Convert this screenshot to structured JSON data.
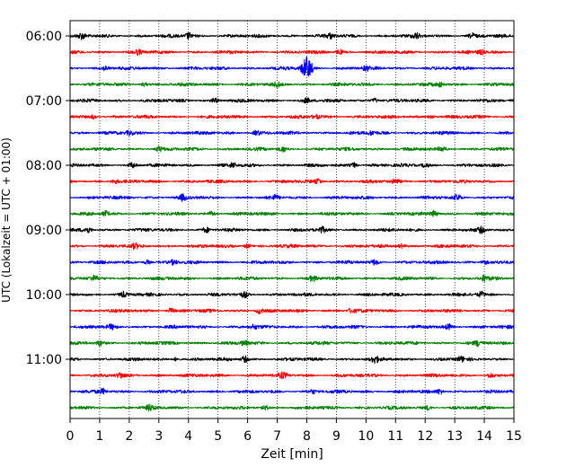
{
  "chart_data": {
    "type": "line",
    "title": "",
    "xlabel": "Zeit  [min]",
    "ylabel": "UTC (Lokalzeit = UTC + 01:00)",
    "xlim": [
      0,
      15
    ],
    "x_ticks": [
      "0",
      "1",
      "2",
      "3",
      "4",
      "5",
      "6",
      "7",
      "8",
      "9",
      "10",
      "11",
      "12",
      "13",
      "14",
      "15"
    ],
    "y_ticks": [
      {
        "label": "06:00",
        "row": 0
      },
      {
        "label": "07:00",
        "row": 4
      },
      {
        "label": "08:00",
        "row": 8
      },
      {
        "label": "09:00",
        "row": 12
      },
      {
        "label": "10:00",
        "row": 16
      },
      {
        "label": "11:00",
        "row": 20
      }
    ],
    "row_minutes": 15,
    "grid_x": true,
    "color_cycle": [
      "#000000",
      "#ff0000",
      "#0000ff",
      "#008000"
    ],
    "rows": [
      {
        "bursts": [
          {
            "t": 0.4,
            "a": 0.7
          },
          {
            "t": 4.0,
            "a": 0.8
          },
          {
            "t": 8.8,
            "a": 0.6
          },
          {
            "t": 11.7,
            "a": 0.6
          },
          {
            "t": 13.6,
            "a": 0.6
          }
        ]
      },
      {
        "bursts": [
          {
            "t": 2.3,
            "a": 0.5
          },
          {
            "t": 9.1,
            "a": 0.6
          },
          {
            "t": 13.9,
            "a": 0.5
          }
        ]
      },
      {
        "bursts": [
          {
            "t": 1.2,
            "a": 0.5
          },
          {
            "t": 8.0,
            "a": 3.0
          },
          {
            "t": 10.0,
            "a": 0.5
          }
        ]
      },
      {
        "bursts": [
          {
            "t": 2.5,
            "a": 0.5
          },
          {
            "t": 7.0,
            "a": 0.5
          },
          {
            "t": 12.5,
            "a": 0.5
          }
        ]
      },
      {
        "bursts": [
          {
            "t": 4.9,
            "a": 0.6
          },
          {
            "t": 8.0,
            "a": 0.5
          },
          {
            "t": 10.3,
            "a": 0.6
          }
        ]
      },
      {
        "bursts": [
          {
            "t": 0.8,
            "a": 0.5
          },
          {
            "t": 8.3,
            "a": 0.5
          },
          {
            "t": 12.2,
            "a": 0.5
          }
        ]
      },
      {
        "bursts": [
          {
            "t": 2.0,
            "a": 0.5
          },
          {
            "t": 6.3,
            "a": 0.6
          },
          {
            "t": 10.2,
            "a": 0.5
          }
        ]
      },
      {
        "bursts": [
          {
            "t": 3.0,
            "a": 0.6
          },
          {
            "t": 7.2,
            "a": 0.6
          },
          {
            "t": 12.6,
            "a": 0.5
          }
        ]
      },
      {
        "bursts": [
          {
            "t": 2.1,
            "a": 0.6
          },
          {
            "t": 5.5,
            "a": 0.6
          },
          {
            "t": 9.6,
            "a": 0.7
          },
          {
            "t": 12.0,
            "a": 0.6
          }
        ]
      },
      {
        "bursts": [
          {
            "t": 1.5,
            "a": 0.5
          },
          {
            "t": 8.4,
            "a": 0.6
          },
          {
            "t": 11.0,
            "a": 0.5
          }
        ]
      },
      {
        "bursts": [
          {
            "t": 3.8,
            "a": 0.7
          },
          {
            "t": 6.9,
            "a": 0.5
          },
          {
            "t": 13.1,
            "a": 0.7
          }
        ]
      },
      {
        "bursts": [
          {
            "t": 1.2,
            "a": 0.6
          },
          {
            "t": 4.8,
            "a": 0.6
          },
          {
            "t": 12.3,
            "a": 0.8
          }
        ]
      },
      {
        "bursts": [
          {
            "t": 0.6,
            "a": 0.7
          },
          {
            "t": 4.6,
            "a": 0.6
          },
          {
            "t": 8.5,
            "a": 0.6
          },
          {
            "t": 13.9,
            "a": 0.6
          }
        ]
      },
      {
        "bursts": [
          {
            "t": 2.2,
            "a": 0.5
          },
          {
            "t": 6.0,
            "a": 0.6
          },
          {
            "t": 11.2,
            "a": 0.5
          }
        ]
      },
      {
        "bursts": [
          {
            "t": 2.6,
            "a": 0.6
          },
          {
            "t": 3.5,
            "a": 0.6
          },
          {
            "t": 10.3,
            "a": 0.6
          },
          {
            "t": 14.0,
            "a": 0.6
          }
        ]
      },
      {
        "bursts": [
          {
            "t": 0.8,
            "a": 0.5
          },
          {
            "t": 8.2,
            "a": 0.6
          },
          {
            "t": 14.0,
            "a": 0.7
          }
        ]
      },
      {
        "bursts": [
          {
            "t": 1.8,
            "a": 0.6
          },
          {
            "t": 5.9,
            "a": 0.6
          },
          {
            "t": 13.9,
            "a": 0.6
          }
        ]
      },
      {
        "bursts": [
          {
            "t": 3.4,
            "a": 0.6
          },
          {
            "t": 6.4,
            "a": 0.7
          },
          {
            "t": 9.5,
            "a": 0.5
          }
        ]
      },
      {
        "bursts": [
          {
            "t": 1.4,
            "a": 0.5
          },
          {
            "t": 6.2,
            "a": 0.5
          },
          {
            "t": 12.8,
            "a": 0.6
          }
        ]
      },
      {
        "bursts": [
          {
            "t": 1.0,
            "a": 0.6
          },
          {
            "t": 5.9,
            "a": 0.6
          },
          {
            "t": 13.8,
            "a": 0.6
          }
        ]
      },
      {
        "bursts": [
          {
            "t": 3.6,
            "a": 0.5
          },
          {
            "t": 5.9,
            "a": 0.8
          },
          {
            "t": 10.3,
            "a": 0.8
          },
          {
            "t": 13.2,
            "a": 0.6
          }
        ]
      },
      {
        "bursts": [
          {
            "t": 1.7,
            "a": 0.6
          },
          {
            "t": 7.2,
            "a": 0.6
          },
          {
            "t": 14.2,
            "a": 0.5
          }
        ]
      },
      {
        "bursts": [
          {
            "t": 1.1,
            "a": 0.6
          },
          {
            "t": 8.2,
            "a": 0.5
          },
          {
            "t": 12.5,
            "a": 0.7
          }
        ]
      },
      {
        "bursts": [
          {
            "t": 2.7,
            "a": 0.6
          },
          {
            "t": 6.6,
            "a": 0.5
          },
          {
            "t": 12.1,
            "a": 0.5
          }
        ]
      }
    ]
  }
}
